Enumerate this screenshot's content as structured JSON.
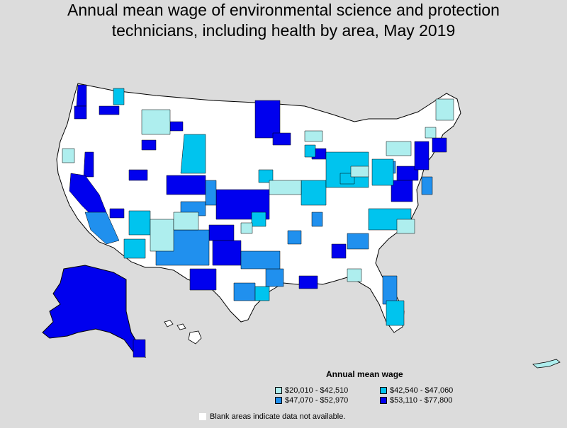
{
  "title": {
    "line1": "Annual mean wage of environmental science and protection",
    "line2": "technicians, including health by area, May 2019"
  },
  "legend": {
    "title": "Annual mean wage",
    "items": [
      {
        "label": "$20,010 - $42,510",
        "color": "#aeeeee"
      },
      {
        "label": "$42,540 - $47,060",
        "color": "#00c4ee"
      },
      {
        "label": "$47,070 - $52,970",
        "color": "#2090ee"
      },
      {
        "label": "$53,110 - $77,800",
        "color": "#0000ee"
      }
    ]
  },
  "note": "Blank areas indicate data not available.",
  "colors": {
    "background": "#dcdcdc",
    "blank": "#ffffff",
    "border": "#000000"
  }
}
